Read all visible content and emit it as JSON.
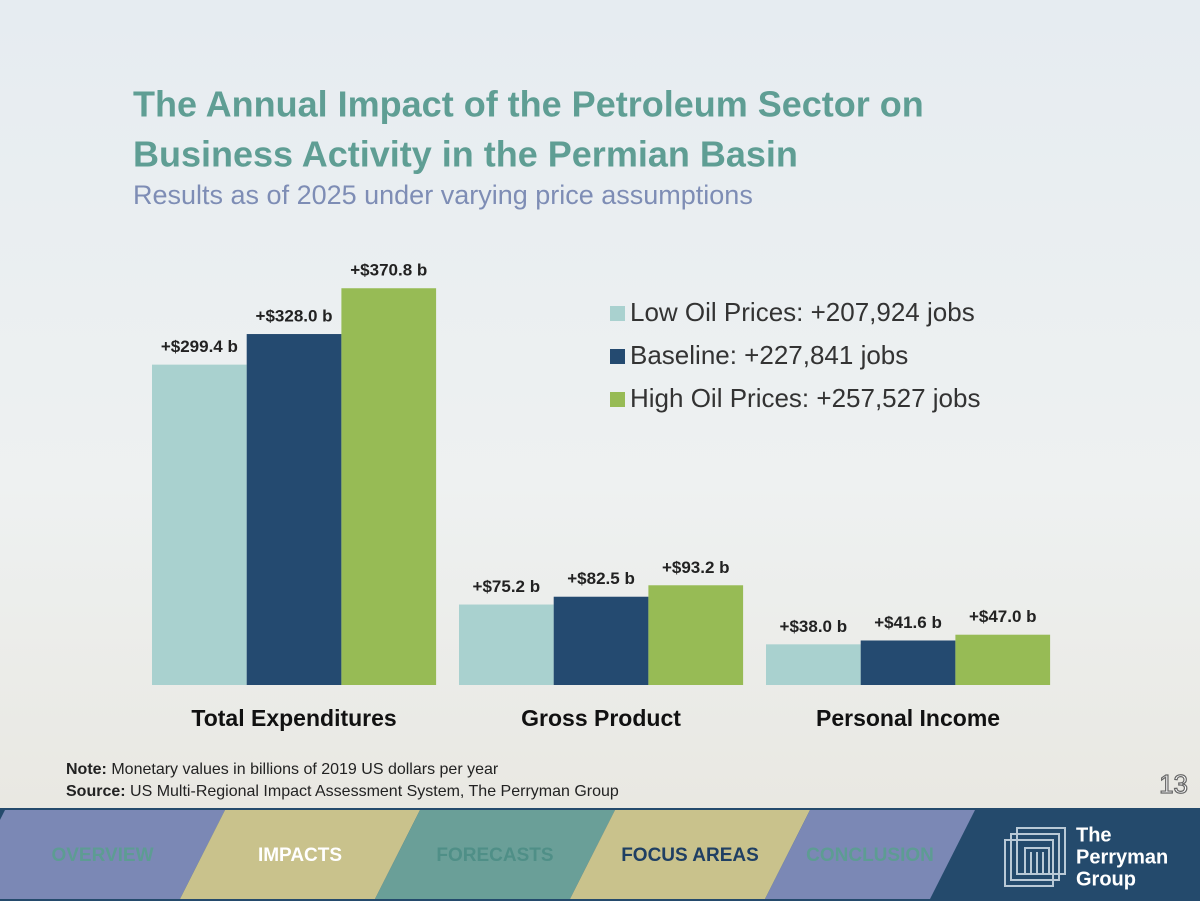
{
  "chart_data": {
    "type": "bar",
    "title": [
      "The Annual Impact of the Petroleum Sector on",
      "Business Activity in the Permian Basin"
    ],
    "subtitle": "Results as of 2025 under varying price assumptions",
    "categories": [
      "Total Expenditures",
      "Gross Product",
      "Personal Income"
    ],
    "series": [
      {
        "name": "Low Oil Prices: +207,924 jobs",
        "color": "#a9d1cf",
        "values": [
          299.4,
          75.2,
          38.0
        ],
        "value_labels": [
          "+$299.4 b",
          "+$75.2 b",
          "+$38.0 b"
        ]
      },
      {
        "name": "Baseline: +227,841 jobs",
        "color": "#244a70",
        "values": [
          328.0,
          82.5,
          41.6
        ],
        "value_labels": [
          "+$328.0 b",
          "+$82.5 b",
          "+$41.6 b"
        ]
      },
      {
        "name": "High Oil Prices: +257,527 jobs",
        "color": "#97bb55",
        "values": [
          370.8,
          93.2,
          47.0
        ],
        "value_labels": [
          "+$370.8 b",
          "+$93.2 b",
          "+$47.0 b"
        ]
      }
    ]
  },
  "note": {
    "label": "Note:",
    "text": "Monetary values in billions of 2019 US dollars per year"
  },
  "source": {
    "label": "Source:",
    "text": "US Multi-Regional Impact Assessment System, The Perryman Group"
  },
  "page_number": "13",
  "nav": [
    "OVERVIEW",
    "IMPACTS",
    "FORECASTS",
    "FOCUS AREAS",
    "CONCLUSION"
  ],
  "logo": [
    "The",
    "Perryman",
    "Group"
  ]
}
